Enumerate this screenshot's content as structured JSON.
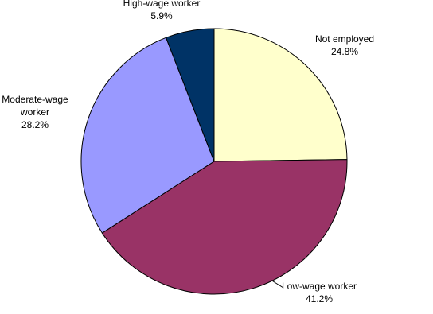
{
  "chart_data": {
    "type": "pie",
    "categories": [
      "Not employed",
      "Low-wage worker",
      "Moderate-wage worker",
      "High-wage worker"
    ],
    "values": [
      24.8,
      41.2,
      28.2,
      5.9
    ],
    "value_labels": [
      "24.8%",
      "41.2%",
      "28.2%",
      "5.9%"
    ],
    "colors": [
      "#ffffcc",
      "#993366",
      "#9999ff",
      "#003366"
    ]
  }
}
